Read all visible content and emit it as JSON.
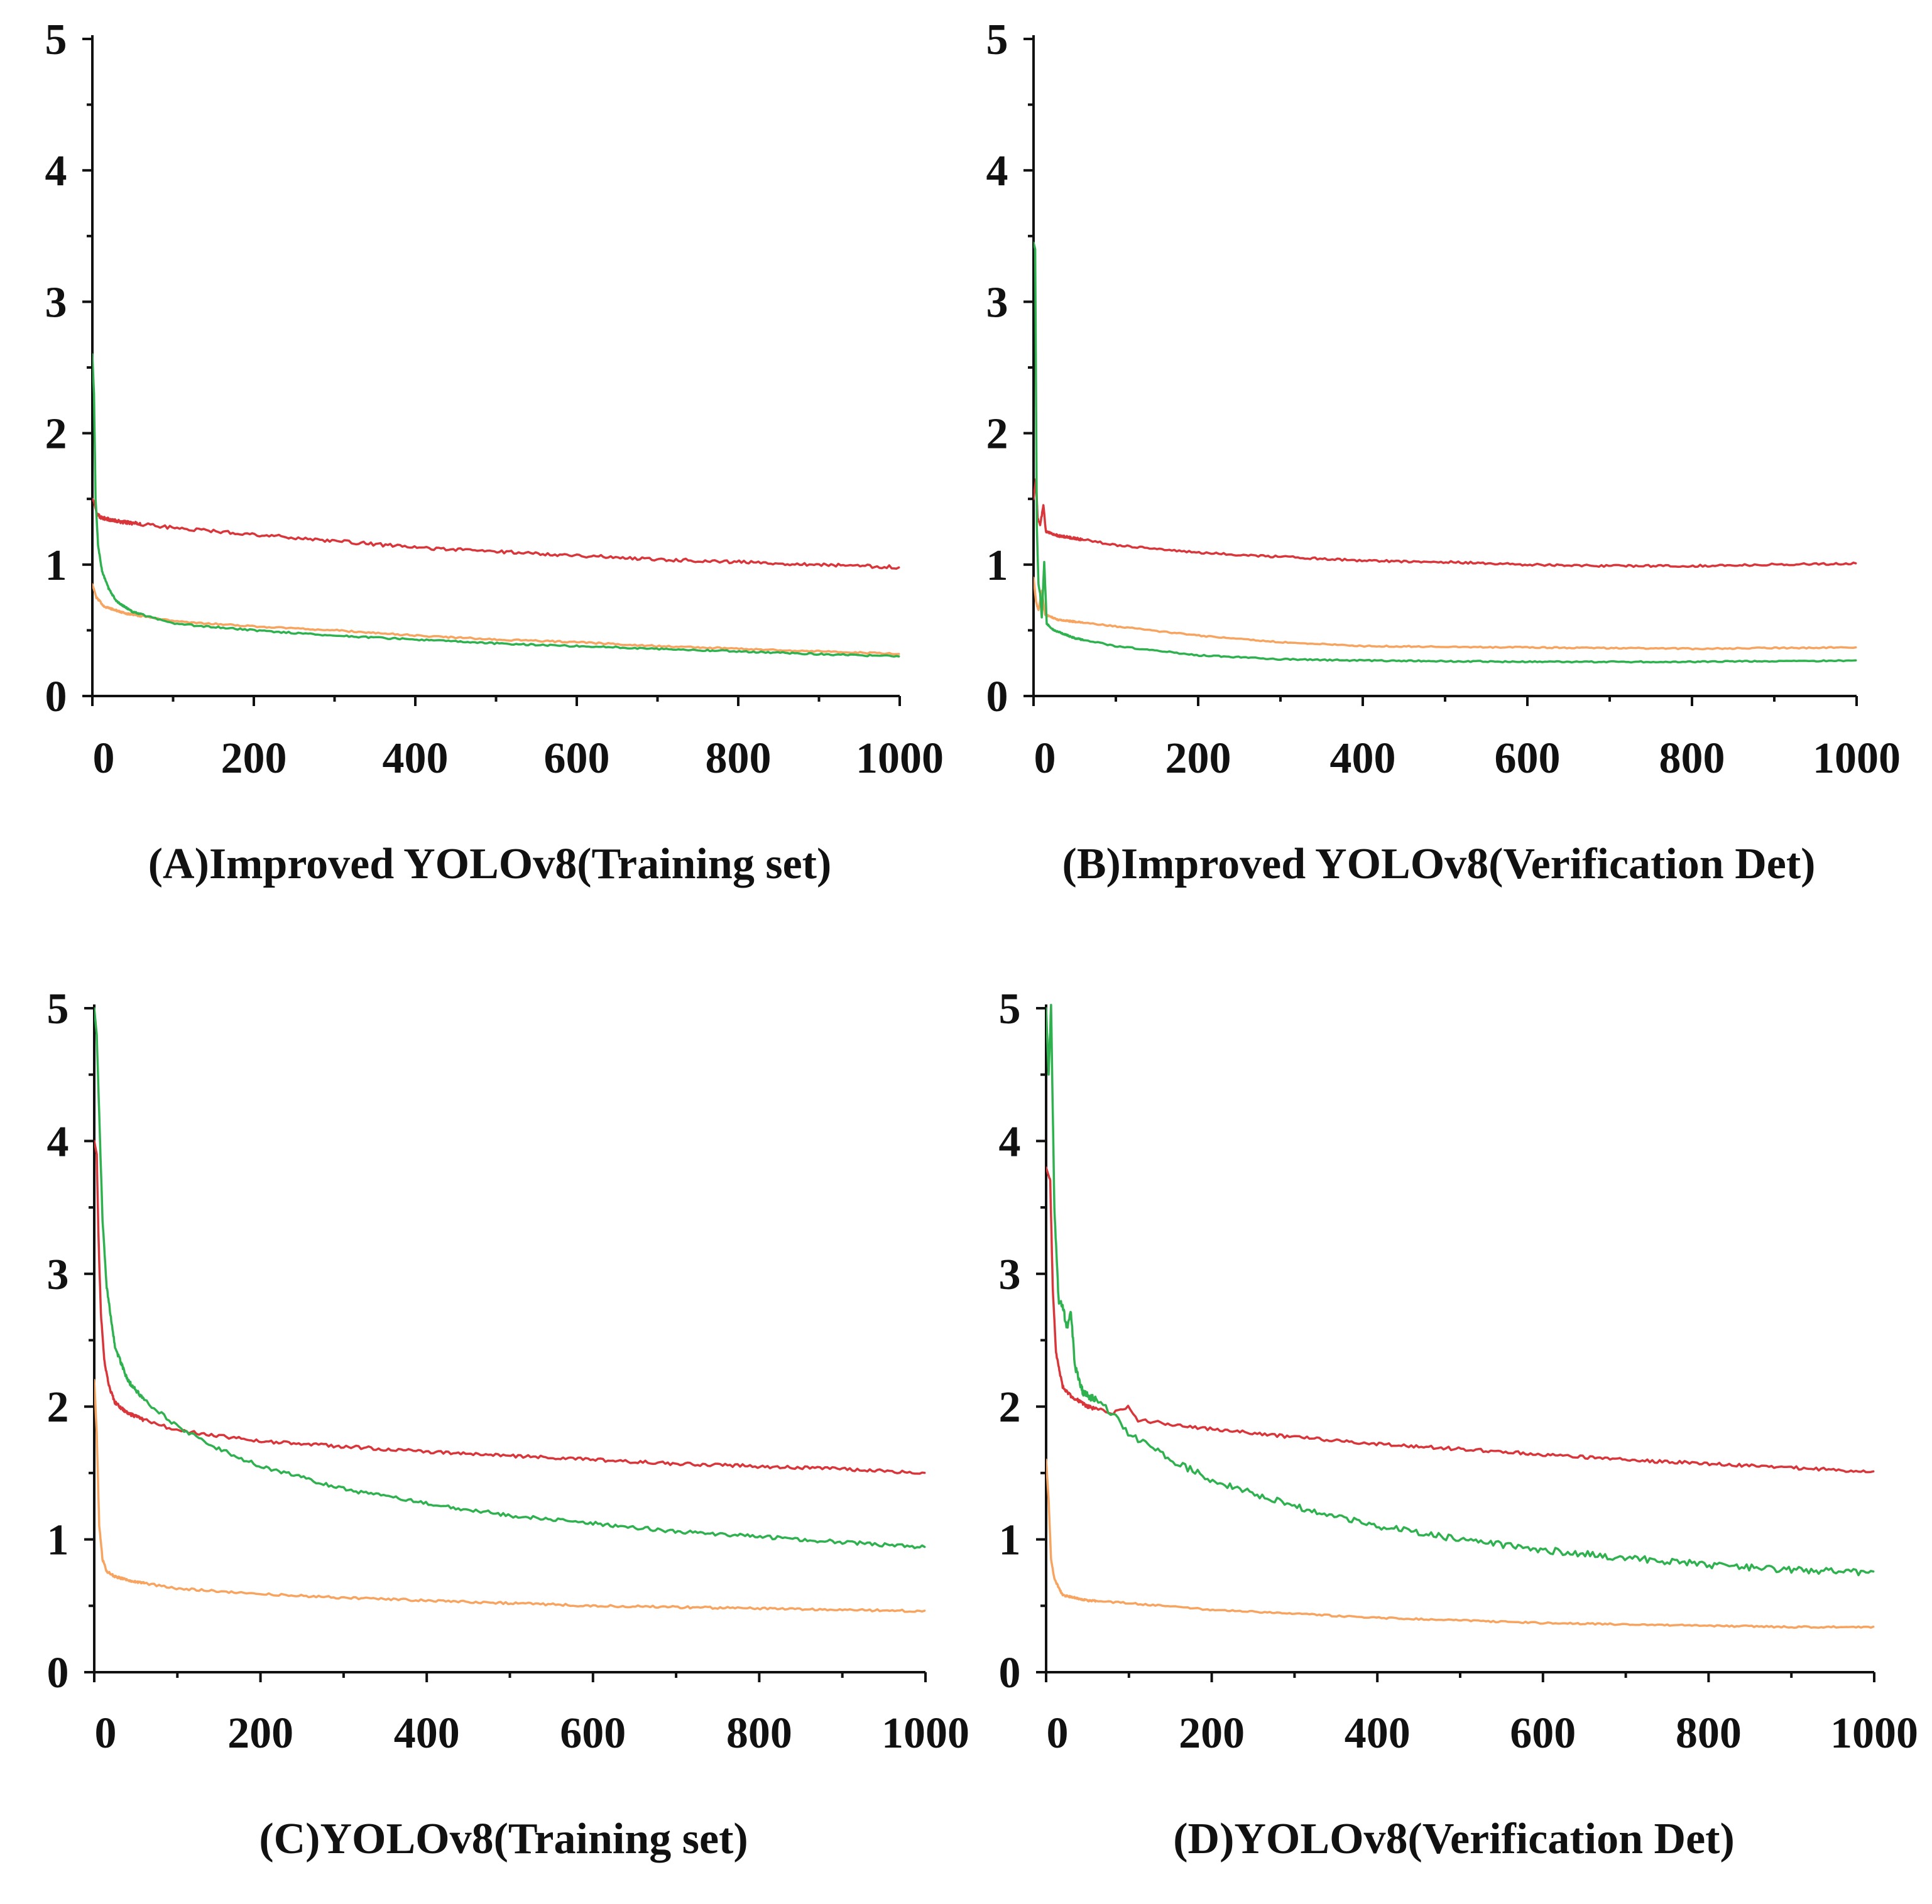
{
  "figure": {
    "panels": [
      "A",
      "B",
      "C",
      "D"
    ]
  },
  "series_colors": {
    "red": "#d8363a",
    "green": "#2fb14f",
    "orange": "#f7a460"
  },
  "chart_data": [
    {
      "id": "A",
      "type": "line",
      "caption": "(A)Improved YOLOv8(Training set)",
      "xlabel": "",
      "ylabel": "",
      "xlim": [
        0,
        1000
      ],
      "ylim": [
        0,
        5
      ],
      "x_ticks": [
        0,
        200,
        400,
        600,
        800,
        1000
      ],
      "y_ticks": [
        0,
        1,
        2,
        3,
        4,
        5
      ],
      "grid": false,
      "series": [
        {
          "name": "red",
          "color": "#d8363a",
          "noise": 0.012,
          "points": [
            [
              0,
              1.5
            ],
            [
              2,
              1.48
            ],
            [
              5,
              1.4
            ],
            [
              10,
              1.36
            ],
            [
              30,
              1.33
            ],
            [
              100,
              1.28
            ],
            [
              200,
              1.23
            ],
            [
              300,
              1.18
            ],
            [
              400,
              1.13
            ],
            [
              500,
              1.1
            ],
            [
              600,
              1.07
            ],
            [
              700,
              1.04
            ],
            [
              800,
              1.02
            ],
            [
              900,
              1.0
            ],
            [
              1000,
              0.98
            ]
          ]
        },
        {
          "name": "orange",
          "color": "#f7a460",
          "noise": 0.006,
          "points": [
            [
              0,
              0.85
            ],
            [
              5,
              0.75
            ],
            [
              15,
              0.68
            ],
            [
              40,
              0.63
            ],
            [
              100,
              0.57
            ],
            [
              200,
              0.53
            ],
            [
              300,
              0.5
            ],
            [
              400,
              0.46
            ],
            [
              500,
              0.43
            ],
            [
              600,
              0.41
            ],
            [
              700,
              0.38
            ],
            [
              800,
              0.36
            ],
            [
              900,
              0.34
            ],
            [
              1000,
              0.32
            ]
          ]
        },
        {
          "name": "green",
          "color": "#2fb14f",
          "noise": 0.006,
          "points": [
            [
              0,
              2.6
            ],
            [
              2,
              2.3
            ],
            [
              4,
              1.5
            ],
            [
              7,
              1.15
            ],
            [
              12,
              0.95
            ],
            [
              20,
              0.82
            ],
            [
              30,
              0.72
            ],
            [
              50,
              0.64
            ],
            [
              100,
              0.55
            ],
            [
              200,
              0.5
            ],
            [
              300,
              0.46
            ],
            [
              400,
              0.43
            ],
            [
              500,
              0.4
            ],
            [
              600,
              0.38
            ],
            [
              700,
              0.36
            ],
            [
              800,
              0.34
            ],
            [
              900,
              0.32
            ],
            [
              1000,
              0.3
            ]
          ]
        }
      ]
    },
    {
      "id": "B",
      "type": "line",
      "caption": "(B)Improved YOLOv8(Verification Det)",
      "xlabel": "",
      "ylabel": "",
      "xlim": [
        0,
        1000
      ],
      "ylim": [
        0,
        5
      ],
      "x_ticks": [
        0,
        200,
        400,
        600,
        800,
        1000
      ],
      "y_ticks": [
        0,
        1,
        2,
        3,
        4,
        5
      ],
      "grid": false,
      "series": [
        {
          "name": "red",
          "color": "#d8363a",
          "noise": 0.008,
          "points": [
            [
              0,
              1.5
            ],
            [
              3,
              1.65
            ],
            [
              5,
              1.35
            ],
            [
              8,
              1.3
            ],
            [
              12,
              1.45
            ],
            [
              15,
              1.25
            ],
            [
              30,
              1.22
            ],
            [
              100,
              1.15
            ],
            [
              200,
              1.09
            ],
            [
              300,
              1.06
            ],
            [
              400,
              1.03
            ],
            [
              500,
              1.02
            ],
            [
              600,
              1.0
            ],
            [
              700,
              0.99
            ],
            [
              800,
              0.99
            ],
            [
              900,
              1.0
            ],
            [
              1000,
              1.01
            ]
          ]
        },
        {
          "name": "orange",
          "color": "#f7a460",
          "noise": 0.005,
          "points": [
            [
              0,
              0.9
            ],
            [
              3,
              0.72
            ],
            [
              6,
              0.65
            ],
            [
              10,
              0.8
            ],
            [
              14,
              0.62
            ],
            [
              30,
              0.58
            ],
            [
              100,
              0.53
            ],
            [
              200,
              0.46
            ],
            [
              300,
              0.41
            ],
            [
              400,
              0.38
            ],
            [
              600,
              0.37
            ],
            [
              800,
              0.36
            ],
            [
              1000,
              0.37
            ]
          ]
        },
        {
          "name": "green",
          "color": "#2fb14f",
          "noise": 0.005,
          "points": [
            [
              0,
              3.45
            ],
            [
              2,
              3.4
            ],
            [
              4,
              1.3
            ],
            [
              6,
              0.85
            ],
            [
              8,
              0.78
            ],
            [
              10,
              0.6
            ],
            [
              13,
              1.02
            ],
            [
              16,
              0.55
            ],
            [
              25,
              0.5
            ],
            [
              50,
              0.44
            ],
            [
              100,
              0.38
            ],
            [
              200,
              0.31
            ],
            [
              300,
              0.28
            ],
            [
              400,
              0.27
            ],
            [
              600,
              0.26
            ],
            [
              800,
              0.26
            ],
            [
              1000,
              0.27
            ]
          ]
        }
      ]
    },
    {
      "id": "C",
      "type": "line",
      "caption": "(C)YOLOv8(Training set)",
      "xlabel": "",
      "ylabel": "",
      "xlim": [
        0,
        1000
      ],
      "ylim": [
        0,
        5
      ],
      "x_ticks": [
        0,
        200,
        400,
        600,
        800,
        1000
      ],
      "y_ticks": [
        0,
        1,
        2,
        3,
        4,
        5
      ],
      "grid": false,
      "series": [
        {
          "name": "red",
          "color": "#d8363a",
          "noise": 0.012,
          "points": [
            [
              0,
              4.0
            ],
            [
              3,
              3.9
            ],
            [
              5,
              3.3
            ],
            [
              8,
              2.7
            ],
            [
              12,
              2.35
            ],
            [
              18,
              2.15
            ],
            [
              25,
              2.03
            ],
            [
              40,
              1.95
            ],
            [
              60,
              1.9
            ],
            [
              100,
              1.82
            ],
            [
              150,
              1.78
            ],
            [
              200,
              1.74
            ],
            [
              300,
              1.7
            ],
            [
              400,
              1.66
            ],
            [
              500,
              1.63
            ],
            [
              600,
              1.6
            ],
            [
              700,
              1.57
            ],
            [
              800,
              1.55
            ],
            [
              900,
              1.53
            ],
            [
              1000,
              1.5
            ]
          ]
        },
        {
          "name": "green",
          "color": "#2fb14f",
          "noise": 0.014,
          "points": [
            [
              0,
              5.0
            ],
            [
              3,
              4.8
            ],
            [
              6,
              4.2
            ],
            [
              10,
              3.4
            ],
            [
              15,
              2.9
            ],
            [
              25,
              2.45
            ],
            [
              40,
              2.2
            ],
            [
              60,
              2.05
            ],
            [
              100,
              1.85
            ],
            [
              150,
              1.68
            ],
            [
              200,
              1.55
            ],
            [
              300,
              1.38
            ],
            [
              400,
              1.27
            ],
            [
              500,
              1.18
            ],
            [
              600,
              1.12
            ],
            [
              700,
              1.06
            ],
            [
              800,
              1.02
            ],
            [
              900,
              0.98
            ],
            [
              1000,
              0.94
            ]
          ]
        },
        {
          "name": "orange",
          "color": "#f7a460",
          "noise": 0.008,
          "points": [
            [
              0,
              2.2
            ],
            [
              3,
              1.8
            ],
            [
              6,
              1.1
            ],
            [
              10,
              0.85
            ],
            [
              15,
              0.76
            ],
            [
              25,
              0.72
            ],
            [
              50,
              0.68
            ],
            [
              100,
              0.63
            ],
            [
              200,
              0.59
            ],
            [
              300,
              0.56
            ],
            [
              400,
              0.54
            ],
            [
              500,
              0.52
            ],
            [
              600,
              0.5
            ],
            [
              700,
              0.49
            ],
            [
              800,
              0.48
            ],
            [
              900,
              0.47
            ],
            [
              1000,
              0.46
            ]
          ]
        }
      ]
    },
    {
      "id": "D",
      "type": "line",
      "caption": "(D)YOLOv8(Verification Det)",
      "xlabel": "",
      "ylabel": "",
      "xlim": [
        0,
        1000
      ],
      "ylim": [
        0,
        5
      ],
      "x_ticks": [
        0,
        200,
        400,
        600,
        800,
        1000
      ],
      "y_ticks": [
        0,
        1,
        2,
        3,
        4,
        5
      ],
      "grid": false,
      "series": [
        {
          "name": "red",
          "color": "#d8363a",
          "noise": 0.012,
          "points": [
            [
              0,
              3.8
            ],
            [
              5,
              3.7
            ],
            [
              8,
              2.9
            ],
            [
              12,
              2.4
            ],
            [
              20,
              2.15
            ],
            [
              30,
              2.08
            ],
            [
              50,
              2.0
            ],
            [
              80,
              1.95
            ],
            [
              100,
              2.0
            ],
            [
              110,
              1.9
            ],
            [
              200,
              1.83
            ],
            [
              300,
              1.77
            ],
            [
              400,
              1.72
            ],
            [
              500,
              1.68
            ],
            [
              600,
              1.64
            ],
            [
              700,
              1.6
            ],
            [
              800,
              1.57
            ],
            [
              900,
              1.54
            ],
            [
              1000,
              1.51
            ]
          ]
        },
        {
          "name": "green",
          "color": "#2fb14f",
          "noise": 0.025,
          "points": [
            [
              0,
              5.0
            ],
            [
              3,
              4.5
            ],
            [
              6,
              5.0
            ],
            [
              10,
              3.5
            ],
            [
              15,
              2.8
            ],
            [
              20,
              2.75
            ],
            [
              25,
              2.6
            ],
            [
              30,
              2.7
            ],
            [
              35,
              2.3
            ],
            [
              45,
              2.1
            ],
            [
              60,
              2.05
            ],
            [
              80,
              1.95
            ],
            [
              100,
              1.8
            ],
            [
              150,
              1.6
            ],
            [
              200,
              1.45
            ],
            [
              300,
              1.25
            ],
            [
              400,
              1.1
            ],
            [
              500,
              1.0
            ],
            [
              600,
              0.92
            ],
            [
              700,
              0.86
            ],
            [
              800,
              0.81
            ],
            [
              900,
              0.77
            ],
            [
              1000,
              0.75
            ]
          ]
        },
        {
          "name": "orange",
          "color": "#f7a460",
          "noise": 0.006,
          "points": [
            [
              0,
              1.6
            ],
            [
              3,
              1.3
            ],
            [
              6,
              0.85
            ],
            [
              10,
              0.7
            ],
            [
              20,
              0.58
            ],
            [
              50,
              0.54
            ],
            [
              100,
              0.52
            ],
            [
              200,
              0.47
            ],
            [
              300,
              0.44
            ],
            [
              400,
              0.41
            ],
            [
              500,
              0.39
            ],
            [
              600,
              0.37
            ],
            [
              700,
              0.36
            ],
            [
              800,
              0.35
            ],
            [
              900,
              0.34
            ],
            [
              1000,
              0.34
            ]
          ]
        }
      ]
    }
  ]
}
